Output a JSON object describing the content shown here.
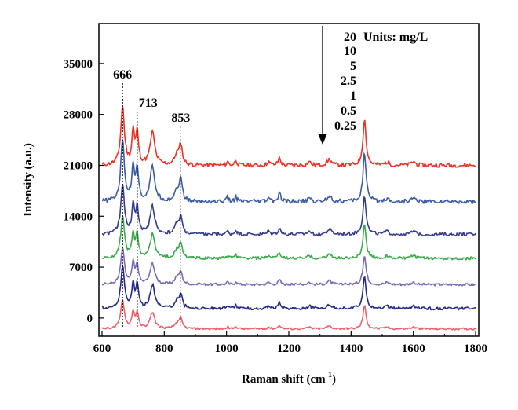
{
  "chart_data": {
    "type": "line",
    "xlabel": "Raman shift (cm",
    "xlabel_sup": "-1",
    "xlabel_suffix": ")",
    "ylabel": "Intensity (a.u.)",
    "xlim": [
      590,
      1810
    ],
    "ylim": [
      -2500,
      40500
    ],
    "x_ticks": [
      600,
      800,
      1000,
      1200,
      1400,
      1600,
      1800
    ],
    "y_ticks": [
      0,
      7000,
      14000,
      21000,
      28000,
      35000
    ],
    "peak_annotations": [
      {
        "label": "666",
        "x": 666
      },
      {
        "label": "713",
        "x": 713
      },
      {
        "label": "853",
        "x": 853
      }
    ],
    "legend": {
      "title": "Units: mg/L",
      "entries": [
        "20",
        "10",
        "5",
        "2.5",
        "1",
        "0.5",
        "0.25"
      ]
    },
    "series": [
      {
        "label": "20",
        "color": "#ee3124",
        "offset": 21000,
        "scale": 1.0
      },
      {
        "label": "10",
        "color": "#3b5ba5",
        "offset": 16000,
        "scale": 1.05
      },
      {
        "label": "5",
        "color": "#353c8f",
        "offset": 11500,
        "scale": 0.85
      },
      {
        "label": "2.5",
        "color": "#3aaa4a",
        "offset": 8200,
        "scale": 0.72
      },
      {
        "label": "1",
        "color": "#7a6ab8",
        "offset": 4600,
        "scale": 0.62
      },
      {
        "label": "0.5",
        "color": "#242a8a",
        "offset": 1300,
        "scale": 0.72
      },
      {
        "label": "0.25",
        "color": "#f0606a",
        "offset": -1500,
        "scale": 0.5
      }
    ],
    "peaks": [
      {
        "x": 666,
        "h": 8000,
        "w": 7
      },
      {
        "x": 700,
        "h": 4500,
        "w": 5
      },
      {
        "x": 713,
        "h": 4200,
        "w": 5
      },
      {
        "x": 762,
        "h": 4500,
        "w": 9
      },
      {
        "x": 840,
        "h": 1400,
        "w": 8
      },
      {
        "x": 853,
        "h": 2700,
        "w": 6
      },
      {
        "x": 1003,
        "h": 500,
        "w": 4
      },
      {
        "x": 1030,
        "h": 700,
        "w": 4
      },
      {
        "x": 1135,
        "h": 500,
        "w": 5
      },
      {
        "x": 1170,
        "h": 1000,
        "w": 5
      },
      {
        "x": 1265,
        "h": 500,
        "w": 6
      },
      {
        "x": 1330,
        "h": 800,
        "w": 8
      },
      {
        "x": 1443,
        "h": 6300,
        "w": 6
      },
      {
        "x": 1515,
        "h": 400,
        "w": 8
      },
      {
        "x": 1600,
        "h": 500,
        "w": 8
      }
    ]
  }
}
